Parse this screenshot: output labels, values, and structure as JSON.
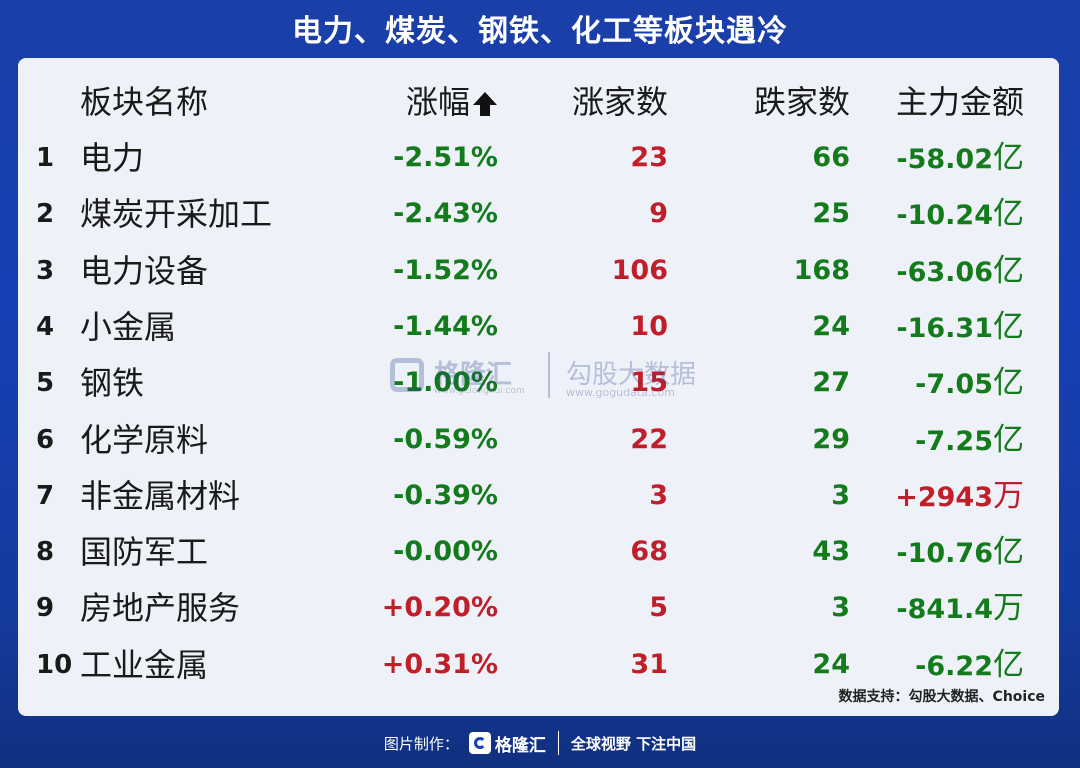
{
  "title": "电力、煤炭、钢铁、化工等板块遇冷",
  "table": {
    "headers": {
      "name": "板块名称",
      "change": "涨幅",
      "up_count": "涨家数",
      "down_count": "跌家数",
      "main_capital": "主力金额"
    },
    "sort_indicator": "arrow-up-icon",
    "rows": [
      {
        "idx": "1",
        "name": "电力",
        "change": "-2.51%",
        "up": "23",
        "down": "66",
        "amount": "-58.02",
        "unit": "亿"
      },
      {
        "idx": "2",
        "name": "煤炭开采加工",
        "change": "-2.43%",
        "up": "9",
        "down": "25",
        "amount": "-10.24",
        "unit": "亿"
      },
      {
        "idx": "3",
        "name": "电力设备",
        "change": "-1.52%",
        "up": "106",
        "down": "168",
        "amount": "-63.06",
        "unit": "亿"
      },
      {
        "idx": "4",
        "name": "小金属",
        "change": "-1.44%",
        "up": "10",
        "down": "24",
        "amount": "-16.31",
        "unit": "亿"
      },
      {
        "idx": "5",
        "name": "钢铁",
        "change": "-1.00%",
        "up": "15",
        "down": "27",
        "amount": "-7.05",
        "unit": "亿"
      },
      {
        "idx": "6",
        "name": "化学原料",
        "change": "-0.59%",
        "up": "22",
        "down": "29",
        "amount": "-7.25",
        "unit": "亿"
      },
      {
        "idx": "7",
        "name": "非金属材料",
        "change": "-0.39%",
        "up": "3",
        "down": "3",
        "amount": "+2943",
        "unit": "万"
      },
      {
        "idx": "8",
        "name": "国防军工",
        "change": "-0.00%",
        "up": "68",
        "down": "43",
        "amount": "-10.76",
        "unit": "亿"
      },
      {
        "idx": "9",
        "name": "房地产服务",
        "change": "+0.20%",
        "up": "5",
        "down": "3",
        "amount": "-841.4",
        "unit": "万"
      },
      {
        "idx": "10",
        "name": "工业金属",
        "change": "+0.31%",
        "up": "31",
        "down": "24",
        "amount": "-6.22",
        "unit": "亿"
      }
    ]
  },
  "source": "数据支持：勾股大数据、Choice",
  "watermark": {
    "brand1": "格隆汇",
    "url1": "www.gelonghui.com",
    "brand2": "勾股大数据",
    "url2": "www.gogudata.com"
  },
  "footer": {
    "label": "图片制作：",
    "brand": "格隆汇",
    "slogan": "全球视野 下注中国"
  },
  "colors": {
    "background": "#1640b4",
    "card": "#eef2f8",
    "negative": "#137b1c",
    "positive": "#c01f2a"
  }
}
